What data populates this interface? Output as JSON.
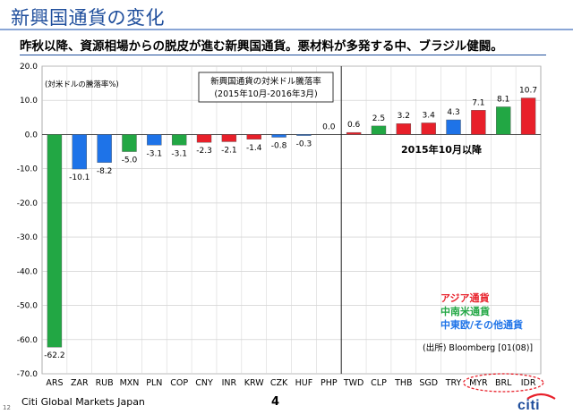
{
  "page": {
    "title": "新興国通貨の変化",
    "headline": "昨秋以降、資源相場からの脱皮が進む新興国通貨。悪材料が多発する中、ブラジル健闘。",
    "footer_number": "12",
    "footer_company": "Citi Global Markets Japan",
    "page_number": "4",
    "logo_text": "citi"
  },
  "colors": {
    "latam": "#22a744",
    "europe_other": "#1e73e8",
    "asia": "#e8202a",
    "highlight_circle": "#e8202a",
    "title_blue": "#1f4e9c"
  },
  "chart_data": {
    "type": "bar",
    "title_box_lines": [
      "新興国通貨の対米ドル騰落率",
      "(2015年10月-2016年3月)"
    ],
    "ylabel": "(対米ドルの騰落率%)",
    "ylim": [
      -70,
      20
    ],
    "yticks": [
      20,
      10,
      0,
      -10,
      -20,
      -30,
      -40,
      -50,
      -60,
      -70
    ],
    "ytick_labels": [
      "20.0",
      "10.0",
      "0.0",
      "-10.0",
      "-20.0",
      "-30.0",
      "-40.0",
      "-50.0",
      "-60.0",
      "-70.0"
    ],
    "grid": true,
    "categories": [
      "ARS",
      "ZAR",
      "RUB",
      "MXN",
      "PLN",
      "COP",
      "CNY",
      "INR",
      "KRW",
      "CZK",
      "HUF",
      "PHP",
      "TWD",
      "CLP",
      "THB",
      "SGD",
      "TRY",
      "MYR",
      "BRL",
      "IDR"
    ],
    "values": [
      -62.2,
      -10.1,
      -8.2,
      -5.0,
      -3.1,
      -3.1,
      -2.3,
      -2.1,
      -1.4,
      -0.8,
      -0.3,
      0.0,
      0.6,
      2.5,
      3.2,
      3.4,
      4.3,
      7.1,
      8.1,
      10.7
    ],
    "value_labels": [
      "-62.2",
      "-10.1",
      "-8.2",
      "-5.0",
      "-3.1",
      "-3.1",
      "-2.3",
      "-2.1",
      "-1.4",
      "-0.8",
      "-0.3",
      "0.0",
      "0.6",
      "2.5",
      "3.2",
      "3.4",
      "4.3",
      "7.1",
      "8.1",
      "10.7"
    ],
    "groups": [
      "latam",
      "europe_other",
      "europe_other",
      "latam",
      "europe_other",
      "latam",
      "asia",
      "asia",
      "asia",
      "europe_other",
      "europe_other",
      "asia",
      "asia",
      "latam",
      "asia",
      "asia",
      "europe_other",
      "asia",
      "latam",
      "asia"
    ],
    "section_label": "2015年10月以降",
    "legend": [
      {
        "group": "asia",
        "label": "アジア通貨"
      },
      {
        "group": "latam",
        "label": "中南米通貨"
      },
      {
        "group": "europe_other",
        "label": "中東欧/その他通貨"
      }
    ],
    "legend_placement": "bottom-right",
    "source": "(出所) Bloomberg [01(08)]",
    "highlighted_categories": [
      "MYR",
      "BRL",
      "IDR"
    ]
  }
}
